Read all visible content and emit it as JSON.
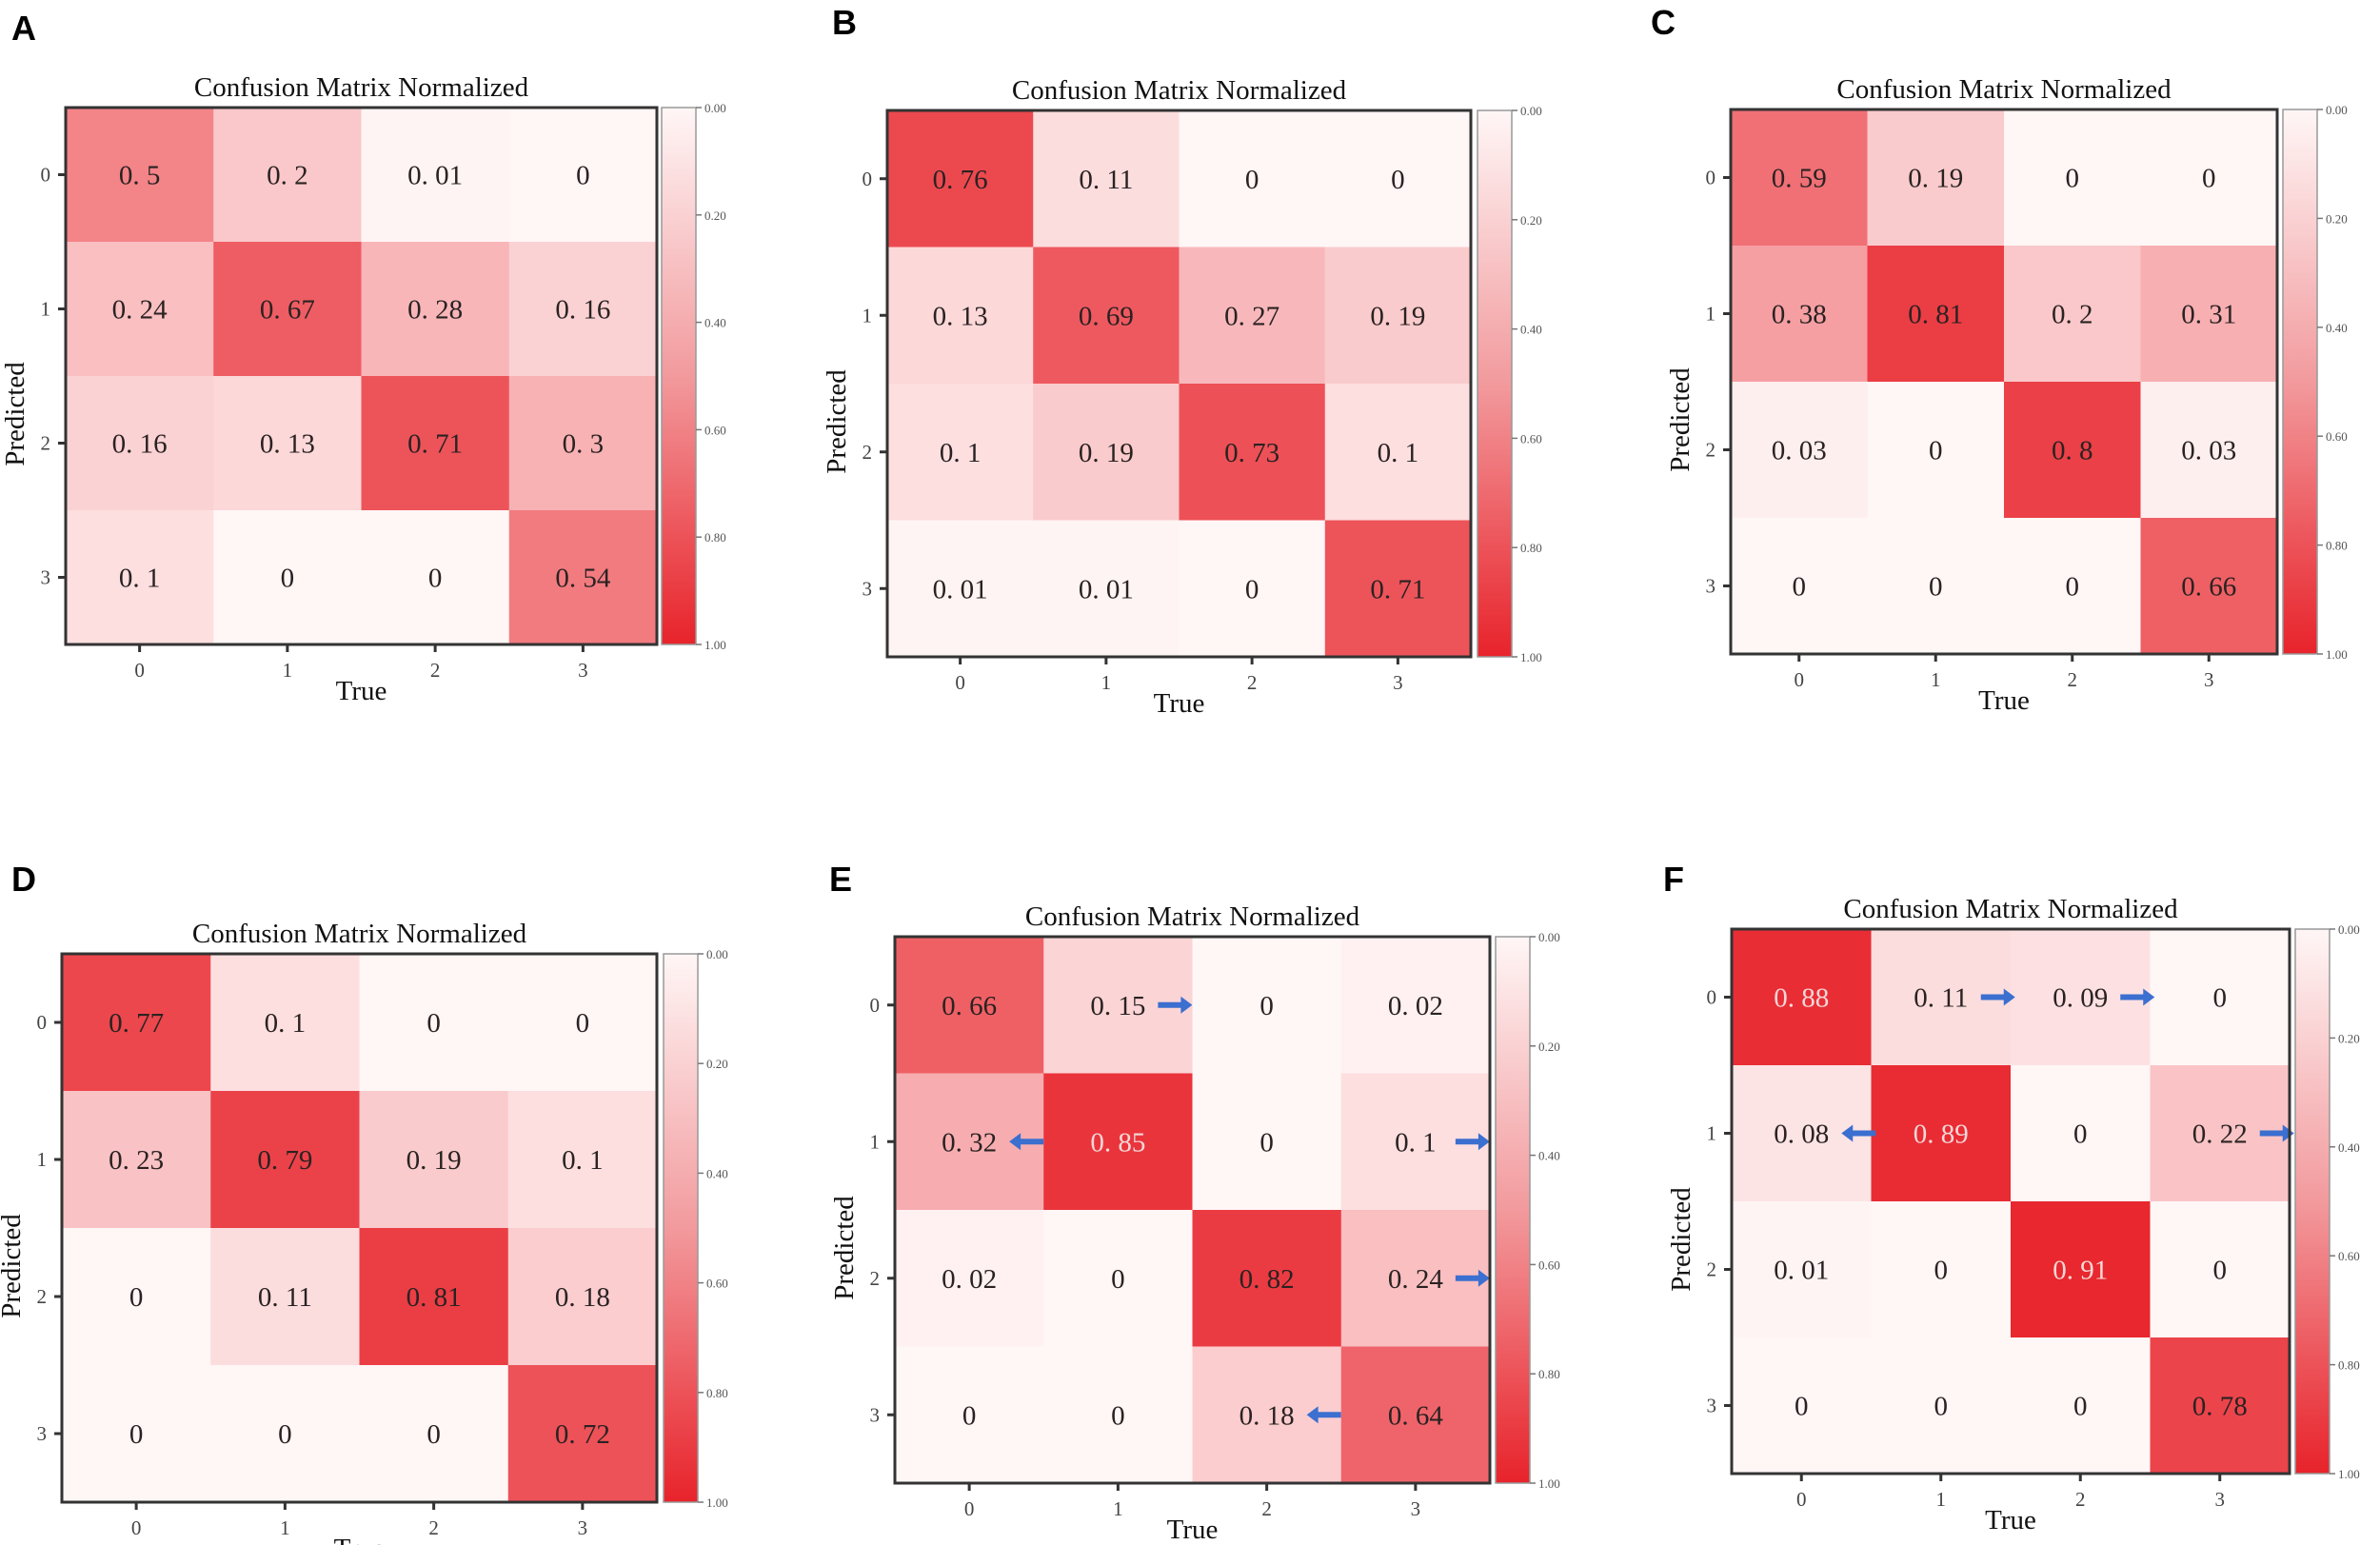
{
  "chart_data": [
    {
      "panel": "A",
      "type": "heatmap",
      "title": "Confusion Matrix Normalized",
      "xlabel": "True",
      "ylabel": "Predicted",
      "x_ticks": [
        "0",
        "1",
        "2",
        "3"
      ],
      "y_ticks": [
        "0",
        "1",
        "2",
        "3"
      ],
      "values": [
        [
          0.5,
          0.2,
          0.01,
          0
        ],
        [
          0.24,
          0.67,
          0.28,
          0.16
        ],
        [
          0.16,
          0.13,
          0.71,
          0.3
        ],
        [
          0.1,
          0,
          0,
          0.54
        ]
      ],
      "colorbar_ticks": [
        "0.00",
        "0.20",
        "0.40",
        "0.60",
        "0.80",
        "1.00"
      ],
      "colorbar_range": [
        0,
        1
      ],
      "arrows": []
    },
    {
      "panel": "B",
      "type": "heatmap",
      "title": "Confusion Matrix Normalized",
      "xlabel": "True",
      "ylabel": "Predicted",
      "x_ticks": [
        "0",
        "1",
        "2",
        "3"
      ],
      "y_ticks": [
        "0",
        "1",
        "2",
        "3"
      ],
      "values": [
        [
          0.76,
          0.11,
          0,
          0
        ],
        [
          0.13,
          0.69,
          0.27,
          0.19
        ],
        [
          0.1,
          0.19,
          0.73,
          0.1
        ],
        [
          0.01,
          0.01,
          0,
          0.71
        ]
      ],
      "colorbar_ticks": [
        "0.00",
        "0.20",
        "0.40",
        "0.60",
        "0.80",
        "1.00"
      ],
      "colorbar_range": [
        0,
        1
      ],
      "arrows": []
    },
    {
      "panel": "C",
      "type": "heatmap",
      "title": "Confusion Matrix Normalized",
      "xlabel": "True",
      "ylabel": "Predicted",
      "x_ticks": [
        "0",
        "1",
        "2",
        "3"
      ],
      "y_ticks": [
        "0",
        "1",
        "2",
        "3"
      ],
      "values": [
        [
          0.59,
          0.19,
          0,
          0
        ],
        [
          0.38,
          0.81,
          0.2,
          0.31
        ],
        [
          0.03,
          0,
          0.8,
          0.03
        ],
        [
          0,
          0,
          0,
          0.66
        ]
      ],
      "colorbar_ticks": [
        "0.00",
        "0.20",
        "0.40",
        "0.60",
        "0.80",
        "1.00"
      ],
      "colorbar_range": [
        0,
        1
      ],
      "arrows": []
    },
    {
      "panel": "D",
      "type": "heatmap",
      "title": "Confusion Matrix Normalized",
      "xlabel": "True",
      "ylabel": "Predicted",
      "x_ticks": [
        "0",
        "1",
        "2",
        "3"
      ],
      "y_ticks": [
        "0",
        "1",
        "2",
        "3"
      ],
      "values": [
        [
          0.77,
          0.1,
          0,
          0
        ],
        [
          0.23,
          0.79,
          0.19,
          0.1
        ],
        [
          0,
          0.11,
          0.81,
          0.18
        ],
        [
          0,
          0,
          0,
          0.72
        ]
      ],
      "colorbar_ticks": [
        "0.00",
        "0.20",
        "0.40",
        "0.60",
        "0.80",
        "1.00"
      ],
      "colorbar_range": [
        0,
        1
      ],
      "arrows": []
    },
    {
      "panel": "E",
      "type": "heatmap",
      "title": "Confusion Matrix Normalized",
      "xlabel": "True",
      "ylabel": "Predicted",
      "x_ticks": [
        "0",
        "1",
        "2",
        "3"
      ],
      "y_ticks": [
        "0",
        "1",
        "2",
        "3"
      ],
      "values": [
        [
          0.66,
          0.15,
          0,
          0.02
        ],
        [
          0.32,
          0.85,
          0,
          0.1
        ],
        [
          0.02,
          0,
          0.82,
          0.24
        ],
        [
          0,
          0,
          0.18,
          0.64
        ]
      ],
      "colorbar_ticks": [
        "0.00",
        "0.20",
        "0.40",
        "0.60",
        "0.80",
        "1.00"
      ],
      "colorbar_range": [
        0,
        1
      ],
      "arrows": [
        {
          "row": 0,
          "col": 1,
          "dir": "right"
        },
        {
          "row": 1,
          "col": 0,
          "dir": "left"
        },
        {
          "row": 1,
          "col": 3,
          "dir": "right"
        },
        {
          "row": 2,
          "col": 3,
          "dir": "right"
        },
        {
          "row": 3,
          "col": 2,
          "dir": "left"
        }
      ]
    },
    {
      "panel": "F",
      "type": "heatmap",
      "title": "Confusion Matrix Normalized",
      "xlabel": "True",
      "ylabel": "Predicted",
      "x_ticks": [
        "0",
        "1",
        "2",
        "3"
      ],
      "y_ticks": [
        "0",
        "1",
        "2",
        "3"
      ],
      "values": [
        [
          0.88,
          0.11,
          0.09,
          0
        ],
        [
          0.08,
          0.89,
          0,
          0.22
        ],
        [
          0.01,
          0,
          0.91,
          0
        ],
        [
          0,
          0,
          0,
          0.78
        ]
      ],
      "colorbar_ticks": [
        "0.00",
        "0.20",
        "0.40",
        "0.60",
        "0.80",
        "1.00"
      ],
      "colorbar_range": [
        0,
        1
      ],
      "arrows": [
        {
          "row": 0,
          "col": 1,
          "dir": "right"
        },
        {
          "row": 0,
          "col": 2,
          "dir": "right"
        },
        {
          "row": 1,
          "col": 0,
          "dir": "left"
        },
        {
          "row": 1,
          "col": 3,
          "dir": "right"
        }
      ]
    }
  ],
  "colors": {
    "low": "#fff6f6",
    "high": "#e8232b",
    "arrow": "#3b6fd0",
    "text_dark": "#2a2222",
    "text_light": "#f3d8d8"
  }
}
